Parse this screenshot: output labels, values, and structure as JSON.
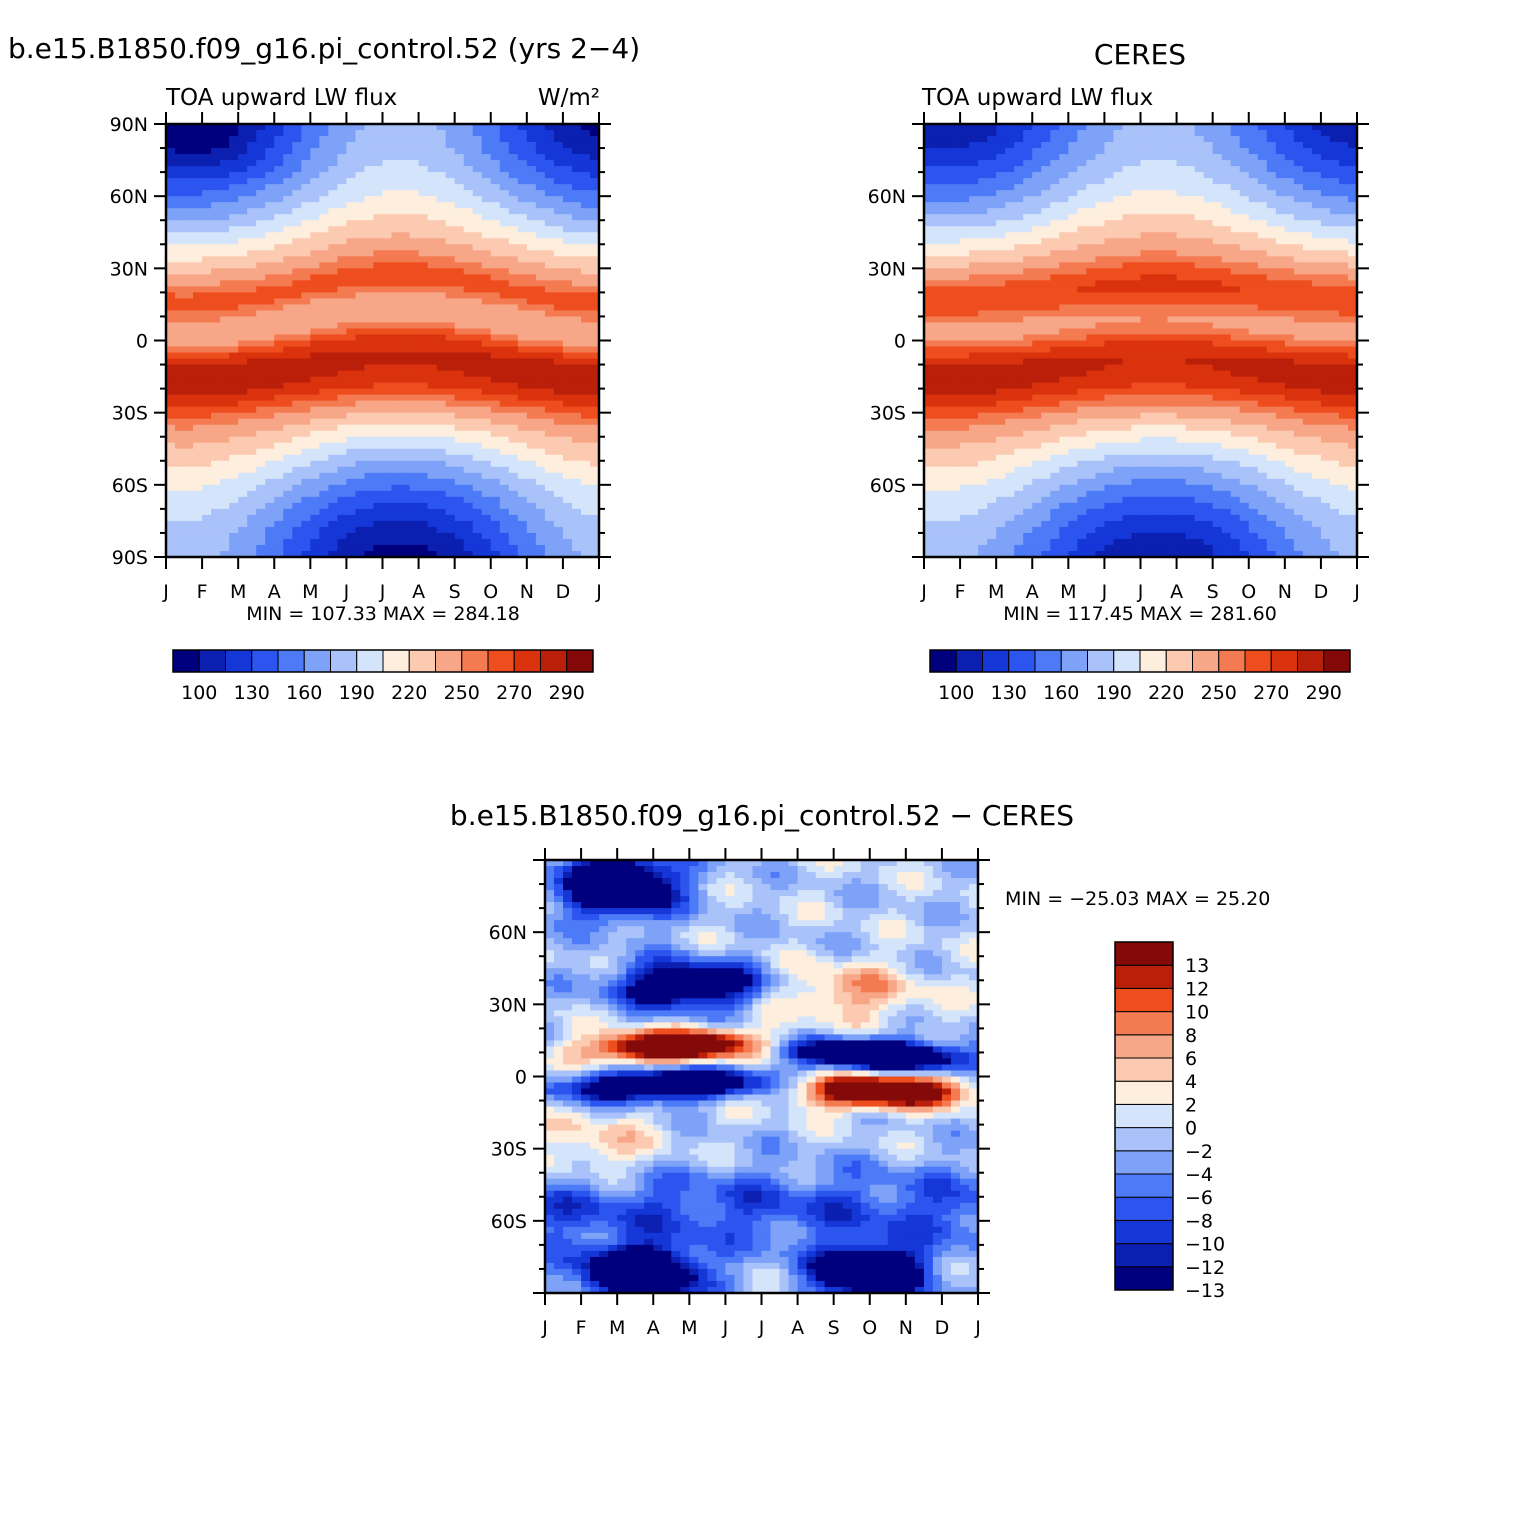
{
  "colors": {
    "scale16": [
      "#00007f",
      "#0b1fb0",
      "#1537d8",
      "#2c55f0",
      "#4d7af6",
      "#7ea2f8",
      "#a9c2fa",
      "#d4e5fb",
      "#feeedd",
      "#fccab1",
      "#f7a787",
      "#f47a51",
      "#ee4d1e",
      "#d9320d",
      "#ba1f09",
      "#840a0a"
    ],
    "diff15": [
      "#00007f",
      "#0b1fb0",
      "#1537d8",
      "#2c55f0",
      "#4d7af6",
      "#7ea2f8",
      "#a9c2fa",
      "#d4e5fb",
      "#feeedd",
      "#fccab1",
      "#f7a787",
      "#f47a51",
      "#ee4d1e",
      "#ba1f09",
      "#840a0a"
    ]
  },
  "header": {
    "case_title": "b.e15.B1850.f09_g16.pi_control.52 (yrs 2−4)",
    "obs_title": "CERES",
    "diff_title": "b.e15.B1850.f09_g16.pi_control.52 − CERES"
  },
  "chart_data": [
    {
      "id": "model",
      "type": "heatmap",
      "subtitle_left": "TOA upward LW flux",
      "subtitle_right": "W/m²",
      "x_tick_labels": [
        "J",
        "F",
        "M",
        "A",
        "M",
        "J",
        "J",
        "A",
        "S",
        "O",
        "N",
        "D",
        "J"
      ],
      "y_tick_labels": [
        "90N",
        "60N",
        "30N",
        "0",
        "30S",
        "60S",
        "90S"
      ],
      "ylim": [
        -90,
        90
      ],
      "min": 107.33,
      "max": 284.18,
      "stats_text": "MIN = 107.33 MAX = 284.18",
      "colorbar_labels": [
        "100",
        "130",
        "160",
        "190",
        "220",
        "250",
        "270",
        "290"
      ]
    },
    {
      "id": "ceres",
      "type": "heatmap",
      "subtitle_left": "TOA upward LW flux",
      "x_tick_labels": [
        "J",
        "F",
        "M",
        "A",
        "M",
        "J",
        "J",
        "A",
        "S",
        "O",
        "N",
        "D",
        "J"
      ],
      "y_tick_labels": [
        "60N",
        "30N",
        "0",
        "30S",
        "60S"
      ],
      "min": 117.45,
      "max": 281.6,
      "stats_text": "MIN = 117.45 MAX = 281.60",
      "colorbar_labels": [
        "100",
        "130",
        "160",
        "190",
        "220",
        "250",
        "270",
        "290"
      ]
    },
    {
      "id": "difference",
      "type": "heatmap",
      "x_tick_labels": [
        "J",
        "F",
        "M",
        "A",
        "M",
        "J",
        "J",
        "A",
        "S",
        "O",
        "N",
        "D",
        "J"
      ],
      "y_tick_labels": [
        "60N",
        "30N",
        "0",
        "30S",
        "60S"
      ],
      "min": -25.03,
      "max": 25.2,
      "stats_text": "MIN = −25.03 MAX =   25.20",
      "colorbar_labels": [
        "13",
        "12",
        "10",
        "8",
        "6",
        "4",
        "2",
        "0",
        "−2",
        "−4",
        "−6",
        "−8",
        "−10",
        "−12",
        "−13"
      ]
    }
  ]
}
